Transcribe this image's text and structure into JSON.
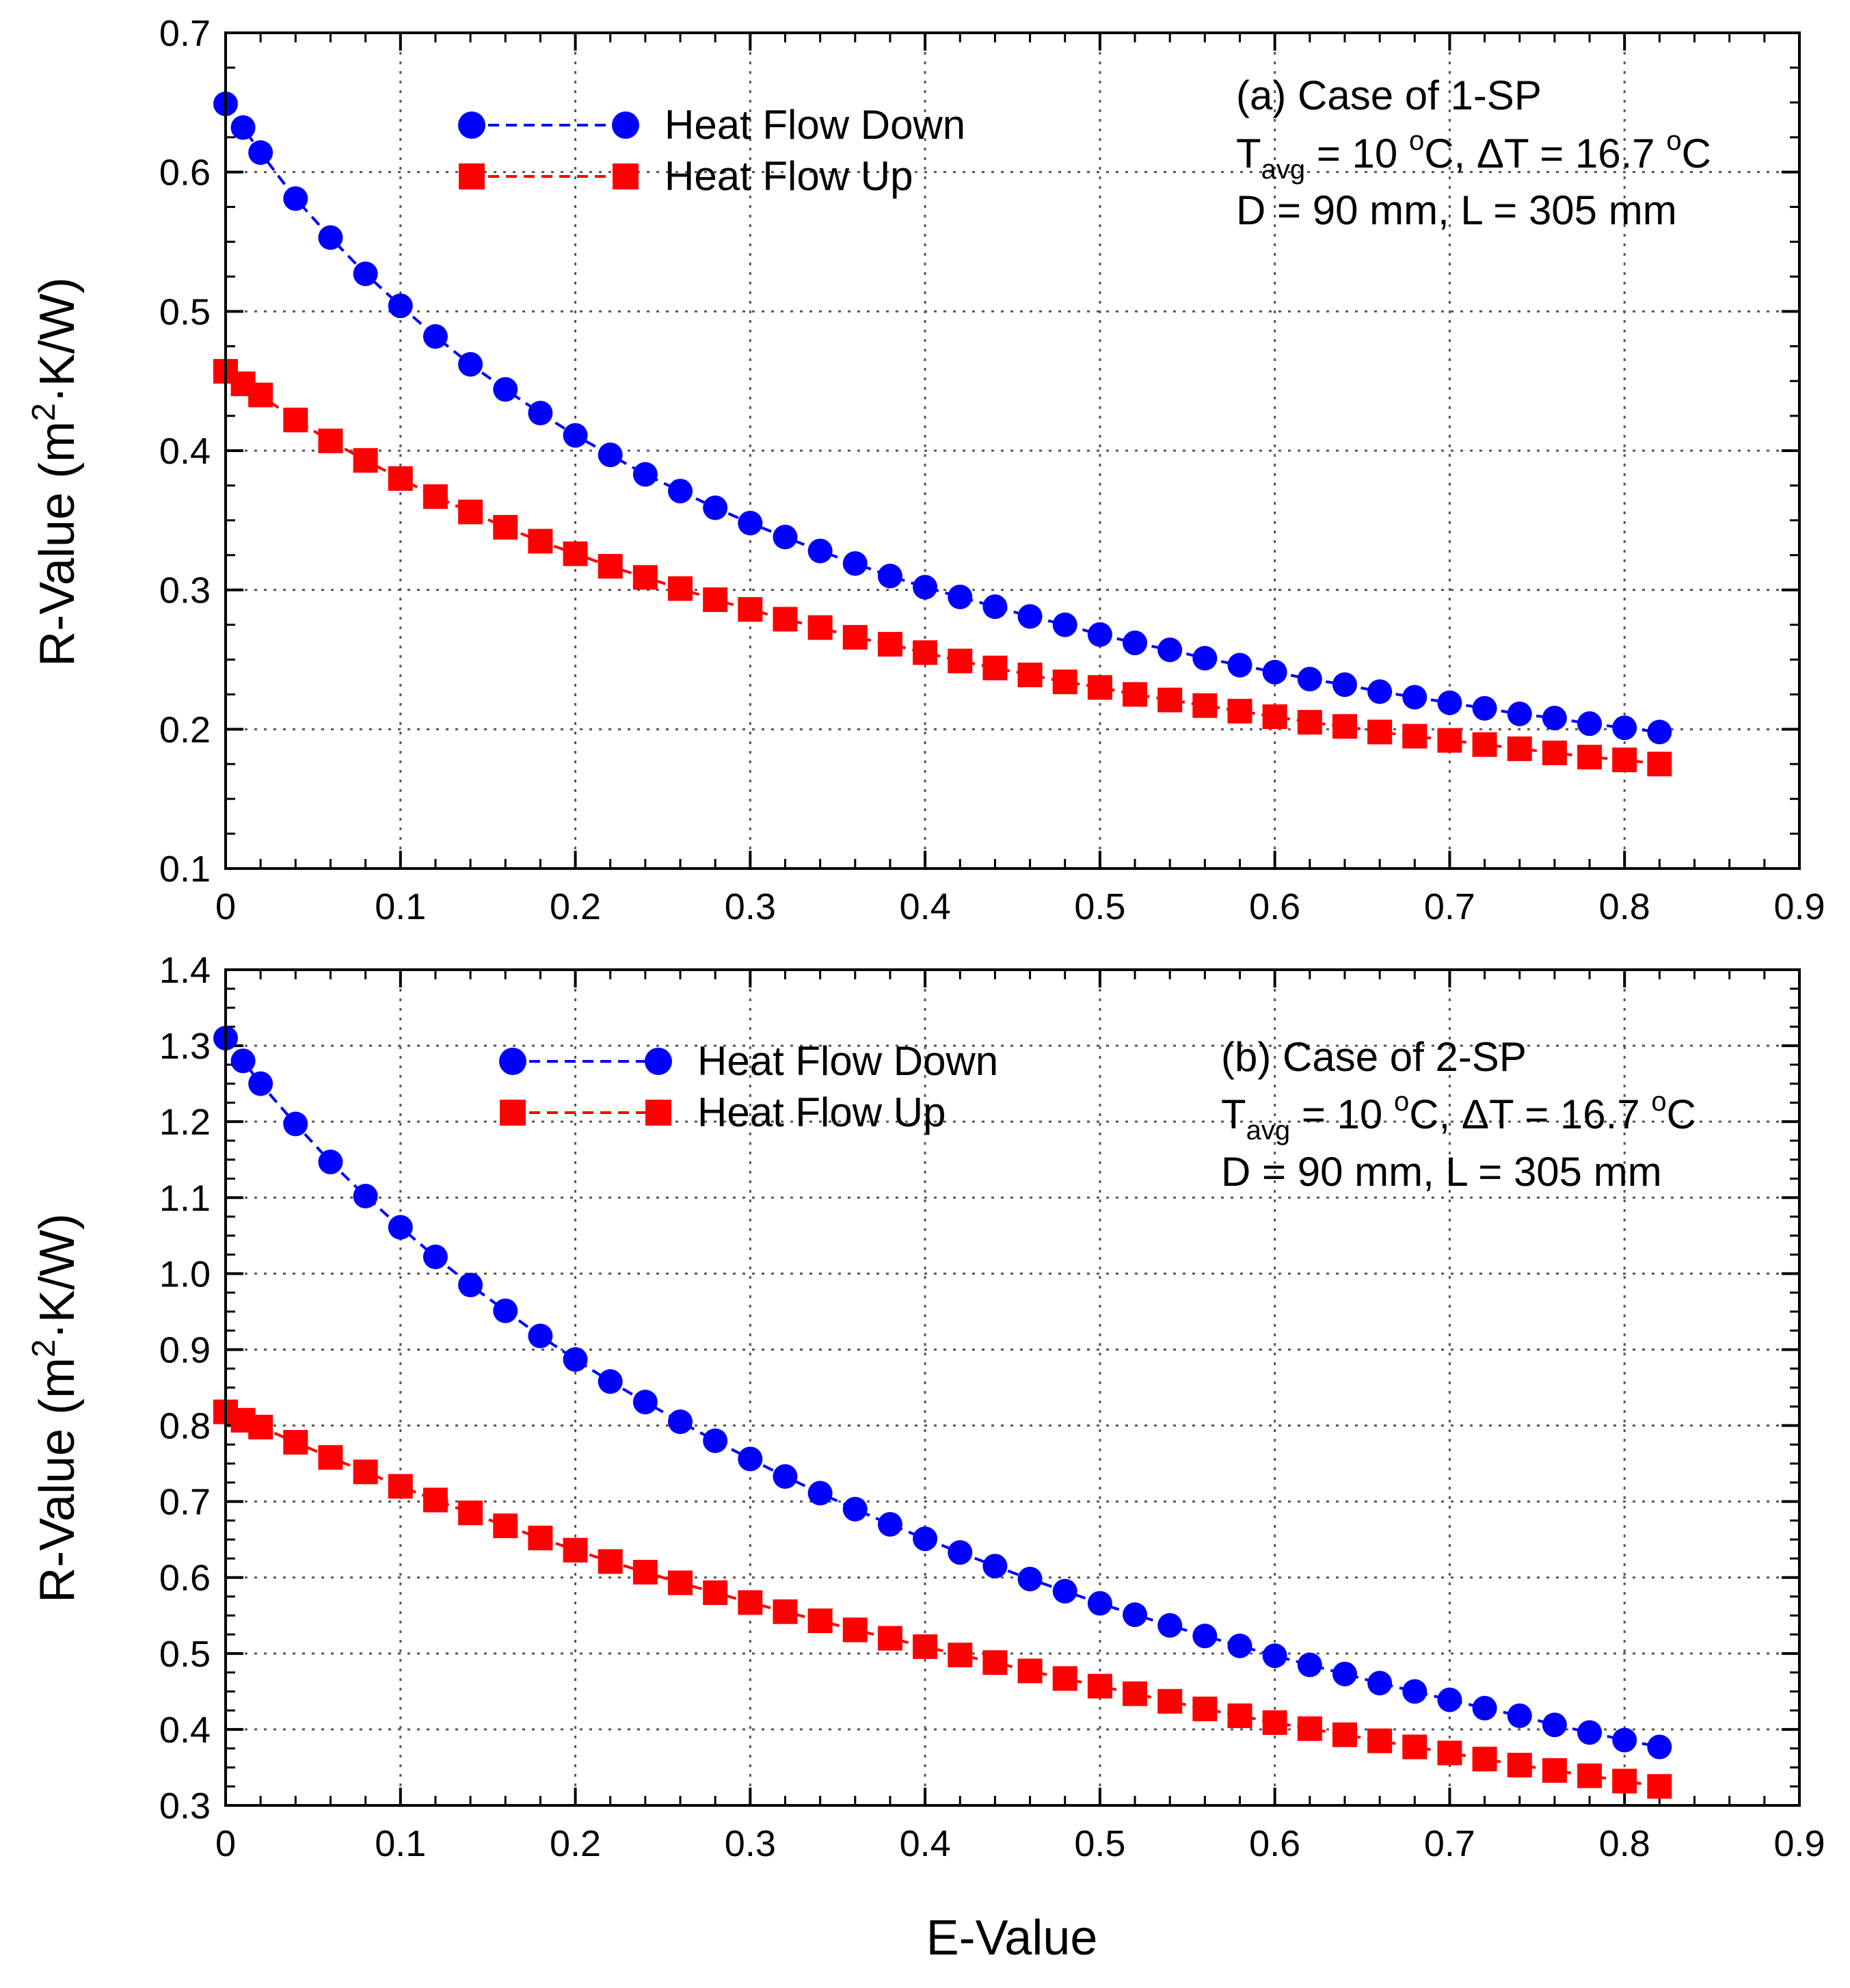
{
  "figure": {
    "xlabel": "E-Value",
    "ylabel_main": "R-Value (m",
    "ylabel_sup": "2",
    "ylabel_tail": "·K/W)"
  },
  "colors": {
    "down": "#0000ff",
    "up": "#ff0000",
    "grid": "#555555",
    "axis": "#000000"
  },
  "chart_data": [
    {
      "type": "line",
      "panel": "a",
      "title": "",
      "xlim": [
        0,
        0.9
      ],
      "ylim": [
        0.1,
        0.7
      ],
      "xticks": [
        "0",
        "0.1",
        "0.2",
        "0.3",
        "0.4",
        "0.5",
        "0.6",
        "0.7",
        "0.8",
        "0.9"
      ],
      "yticks": [
        "0.1",
        "0.2",
        "0.3",
        "0.4",
        "0.5",
        "0.6",
        "0.7"
      ],
      "x": [
        0,
        0.01,
        0.02,
        0.04,
        0.06,
        0.08,
        0.1,
        0.12,
        0.14,
        0.16,
        0.18,
        0.2,
        0.22,
        0.24,
        0.26,
        0.28,
        0.3,
        0.32,
        0.34,
        0.36,
        0.38,
        0.4,
        0.42,
        0.44,
        0.46,
        0.48,
        0.5,
        0.52,
        0.54,
        0.56,
        0.58,
        0.6,
        0.62,
        0.64,
        0.66,
        0.68,
        0.7,
        0.72,
        0.74,
        0.76,
        0.78,
        0.8,
        0.82
      ],
      "series": [
        {
          "name": "Heat Flow Down",
          "marker": "circle",
          "color": "#0000ff",
          "values": [
            0.649,
            0.632,
            0.614,
            0.581,
            0.553,
            0.527,
            0.504,
            0.482,
            0.462,
            0.444,
            0.427,
            0.411,
            0.397,
            0.383,
            0.371,
            0.359,
            0.348,
            0.338,
            0.328,
            0.319,
            0.31,
            0.302,
            0.295,
            0.288,
            0.281,
            0.275,
            0.268,
            0.262,
            0.257,
            0.251,
            0.246,
            0.241,
            0.236,
            0.232,
            0.227,
            0.223,
            0.219,
            0.215,
            0.211,
            0.208,
            0.204,
            0.201,
            0.198
          ]
        },
        {
          "name": "Heat Flow Up",
          "marker": "square",
          "color": "#ff0000",
          "values": [
            0.457,
            0.448,
            0.44,
            0.422,
            0.407,
            0.393,
            0.38,
            0.367,
            0.356,
            0.345,
            0.335,
            0.326,
            0.317,
            0.309,
            0.301,
            0.293,
            0.286,
            0.279,
            0.273,
            0.266,
            0.261,
            0.255,
            0.249,
            0.244,
            0.239,
            0.234,
            0.23,
            0.225,
            0.221,
            0.217,
            0.213,
            0.209,
            0.205,
            0.202,
            0.198,
            0.195,
            0.192,
            0.189,
            0.186,
            0.183,
            0.18,
            0.178,
            0.175
          ]
        }
      ],
      "legend": [
        "Heat Flow Down",
        "Heat Flow Up"
      ],
      "annotation": {
        "line1": "(a) Case of 1-SP",
        "line2_T": "T",
        "line2_sub": "avg",
        "line2_a": " = 10 ",
        "line2_sup1": "o",
        "line2_b": "C, ΔT = 16.7 ",
        "line2_sup2": "o",
        "line2_c": "C",
        "line3": "D = 90 mm, L = 305 mm"
      }
    },
    {
      "type": "line",
      "panel": "b",
      "title": "",
      "xlim": [
        0,
        0.9
      ],
      "ylim": [
        0.3,
        1.4
      ],
      "xticks": [
        "0",
        "0.1",
        "0.2",
        "0.3",
        "0.4",
        "0.5",
        "0.6",
        "0.7",
        "0.8",
        "0.9"
      ],
      "yticks": [
        "0.3",
        "0.4",
        "0.5",
        "0.6",
        "0.7",
        "0.8",
        "0.9",
        "1.0",
        "1.1",
        "1.2",
        "1.3",
        "1.4"
      ],
      "x": [
        0,
        0.01,
        0.02,
        0.04,
        0.06,
        0.08,
        0.1,
        0.12,
        0.14,
        0.16,
        0.18,
        0.2,
        0.22,
        0.24,
        0.26,
        0.28,
        0.3,
        0.32,
        0.34,
        0.36,
        0.38,
        0.4,
        0.42,
        0.44,
        0.46,
        0.48,
        0.5,
        0.52,
        0.54,
        0.56,
        0.58,
        0.6,
        0.62,
        0.64,
        0.66,
        0.68,
        0.7,
        0.72,
        0.74,
        0.76,
        0.78,
        0.8,
        0.82
      ],
      "series": [
        {
          "name": "Heat Flow Down",
          "marker": "circle",
          "color": "#0000ff",
          "values": [
            1.31,
            1.28,
            1.25,
            1.197,
            1.147,
            1.102,
            1.061,
            1.022,
            0.985,
            0.951,
            0.918,
            0.887,
            0.858,
            0.831,
            0.805,
            0.78,
            0.756,
            0.733,
            0.711,
            0.69,
            0.67,
            0.651,
            0.633,
            0.615,
            0.598,
            0.582,
            0.566,
            0.551,
            0.537,
            0.523,
            0.51,
            0.497,
            0.485,
            0.473,
            0.461,
            0.45,
            0.439,
            0.428,
            0.418,
            0.406,
            0.396,
            0.386,
            0.377
          ]
        },
        {
          "name": "Heat Flow Up",
          "marker": "square",
          "color": "#ff0000",
          "values": [
            0.818,
            0.807,
            0.798,
            0.778,
            0.758,
            0.739,
            0.72,
            0.702,
            0.685,
            0.668,
            0.652,
            0.636,
            0.621,
            0.607,
            0.593,
            0.58,
            0.567,
            0.555,
            0.543,
            0.531,
            0.52,
            0.509,
            0.498,
            0.488,
            0.477,
            0.467,
            0.457,
            0.447,
            0.437,
            0.427,
            0.418,
            0.409,
            0.401,
            0.393,
            0.385,
            0.377,
            0.369,
            0.361,
            0.353,
            0.346,
            0.339,
            0.332,
            0.325
          ]
        }
      ],
      "legend": [
        "Heat Flow Down",
        "Heat Flow Up"
      ],
      "annotation": {
        "line1": "(b) Case of 2-SP",
        "line2_T": "T",
        "line2_sub": "avg",
        "line2_a": " = 10 ",
        "line2_sup1": "o",
        "line2_b": "C, ΔT = 16.7 ",
        "line2_sup2": "o",
        "line2_c": "C",
        "line3": "D = 90 mm, L = 305 mm"
      }
    }
  ]
}
